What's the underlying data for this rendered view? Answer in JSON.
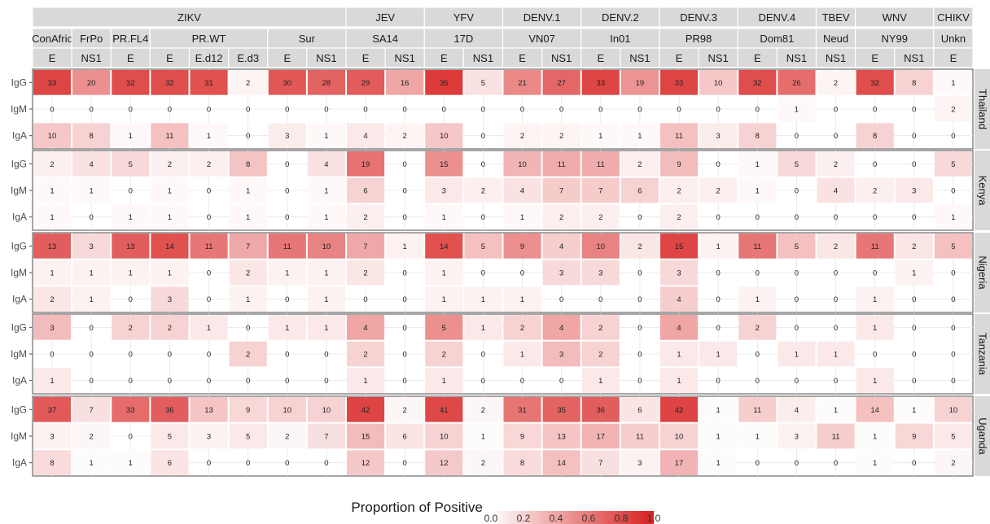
{
  "chart_data": {
    "type": "heatmap",
    "virus_headers": [
      "ZIKV",
      "JEV",
      "YFV",
      "DENV.1",
      "DENV.2",
      "DENV.3",
      "DENV.4",
      "TBEV",
      "WNV",
      "CHIKV"
    ],
    "strain_headers": [
      "ConAfric",
      "FrPo",
      "PR.FL4",
      "PR.WT",
      "Sur",
      "SA14",
      "17D",
      "VN07",
      "In01",
      "PR98",
      "Dom81",
      "Neud",
      "NY99",
      "Unkn"
    ],
    "antigen_headers": [
      "E",
      "NS1",
      "E",
      "E",
      "E.d12",
      "E.d3",
      "E",
      "NS1",
      "E",
      "NS1",
      "E",
      "NS1",
      "E",
      "NS1",
      "E",
      "NS1",
      "E",
      "NS1",
      "E",
      "NS1",
      "NS1",
      "E",
      "NS1",
      "E"
    ],
    "country_labels": [
      "Thailand",
      "Kenya",
      "Nigeria",
      "Tanzania",
      "Uganda"
    ],
    "isotype_labels": [
      "IgG",
      "IgM",
      "IgA"
    ],
    "values": [
      [
        [
          33,
          20,
          32,
          32,
          31,
          2,
          30,
          28,
          29,
          16,
          35,
          5,
          21,
          27,
          33,
          19,
          33,
          10,
          32,
          26,
          2,
          32,
          8,
          1
        ],
        [
          0,
          0,
          0,
          0,
          0,
          0,
          0,
          0,
          0,
          0,
          0,
          0,
          0,
          0,
          0,
          0,
          0,
          0,
          0,
          1,
          0,
          0,
          0,
          2
        ],
        [
          10,
          8,
          1,
          11,
          1,
          0,
          3,
          1,
          4,
          2,
          10,
          0,
          2,
          2,
          1,
          1,
          11,
          3,
          8,
          0,
          0,
          8,
          0,
          0
        ]
      ],
      [
        [
          2,
          4,
          5,
          2,
          2,
          8,
          0,
          4,
          19,
          0,
          15,
          0,
          10,
          11,
          11,
          2,
          9,
          0,
          1,
          5,
          2,
          0,
          0,
          5
        ],
        [
          1,
          1,
          0,
          1,
          0,
          1,
          0,
          1,
          6,
          0,
          3,
          2,
          4,
          7,
          7,
          6,
          2,
          2,
          1,
          0,
          4,
          2,
          3,
          0
        ],
        [
          1,
          0,
          1,
          1,
          0,
          1,
          0,
          1,
          2,
          0,
          1,
          0,
          1,
          2,
          2,
          0,
          2,
          0,
          0,
          0,
          0,
          0,
          0,
          1
        ]
      ],
      [
        [
          13,
          3,
          13,
          14,
          11,
          7,
          11,
          10,
          7,
          1,
          14,
          5,
          9,
          4,
          10,
          2,
          15,
          1,
          11,
          5,
          2,
          11,
          2,
          5
        ],
        [
          1,
          1,
          1,
          1,
          0,
          2,
          1,
          1,
          2,
          0,
          1,
          0,
          0,
          3,
          3,
          0,
          3,
          0,
          0,
          0,
          0,
          0,
          1,
          0
        ],
        [
          2,
          1,
          0,
          3,
          0,
          1,
          0,
          1,
          0,
          0,
          1,
          1,
          1,
          0,
          0,
          0,
          4,
          0,
          1,
          0,
          0,
          1,
          0,
          0
        ]
      ],
      [
        [
          3,
          0,
          2,
          2,
          1,
          0,
          1,
          1,
          4,
          0,
          5,
          1,
          2,
          4,
          2,
          0,
          4,
          0,
          2,
          0,
          0,
          1,
          0,
          0
        ],
        [
          0,
          0,
          0,
          0,
          0,
          2,
          0,
          0,
          2,
          0,
          2,
          0,
          1,
          3,
          2,
          0,
          1,
          1,
          0,
          1,
          1,
          0,
          0,
          0
        ],
        [
          1,
          0,
          0,
          0,
          0,
          0,
          0,
          0,
          1,
          0,
          1,
          0,
          0,
          0,
          1,
          0,
          1,
          0,
          0,
          0,
          0,
          1,
          0,
          0
        ]
      ],
      [
        [
          37,
          7,
          33,
          36,
          13,
          9,
          10,
          10,
          42,
          2,
          41,
          2,
          31,
          35,
          36,
          6,
          42,
          1,
          11,
          4,
          1,
          14,
          1,
          10
        ],
        [
          3,
          2,
          0,
          5,
          3,
          5,
          2,
          7,
          15,
          6,
          10,
          1,
          9,
          13,
          17,
          11,
          10,
          1,
          1,
          3,
          11,
          1,
          9,
          5
        ],
        [
          8,
          1,
          1,
          6,
          0,
          0,
          0,
          0,
          12,
          0,
          12,
          2,
          8,
          14,
          7,
          3,
          17,
          1,
          0,
          0,
          0,
          1,
          0,
          2
        ]
      ]
    ],
    "proportions": [
      [
        [
          0.83,
          0.5,
          0.8,
          0.8,
          0.78,
          0.05,
          0.75,
          0.7,
          0.73,
          0.4,
          0.88,
          0.13,
          0.53,
          0.68,
          0.83,
          0.48,
          0.83,
          0.25,
          0.8,
          0.65,
          0.05,
          0.8,
          0.2,
          0.03
        ],
        [
          0,
          0,
          0,
          0,
          0,
          0,
          0,
          0,
          0,
          0,
          0,
          0,
          0,
          0,
          0,
          0,
          0,
          0,
          0,
          0.03,
          0,
          0,
          0,
          0.05
        ],
        [
          0.25,
          0.2,
          0.03,
          0.28,
          0.03,
          0,
          0.08,
          0.03,
          0.1,
          0.05,
          0.25,
          0,
          0.05,
          0.05,
          0.03,
          0.03,
          0.28,
          0.08,
          0.2,
          0,
          0,
          0.2,
          0,
          0
        ]
      ],
      [
        [
          0.07,
          0.13,
          0.17,
          0.07,
          0.07,
          0.27,
          0,
          0.13,
          0.63,
          0,
          0.5,
          0,
          0.33,
          0.37,
          0.37,
          0.07,
          0.3,
          0,
          0.03,
          0.17,
          0.07,
          0,
          0,
          0.17
        ],
        [
          0.03,
          0.03,
          0,
          0.03,
          0,
          0.03,
          0,
          0.03,
          0.2,
          0,
          0.1,
          0.07,
          0.13,
          0.23,
          0.23,
          0.2,
          0.07,
          0.07,
          0.03,
          0,
          0.13,
          0.07,
          0.1,
          0
        ],
        [
          0.03,
          0,
          0.03,
          0.03,
          0,
          0.03,
          0,
          0.03,
          0.07,
          0,
          0.03,
          0,
          0.03,
          0.07,
          0.07,
          0,
          0.07,
          0,
          0,
          0,
          0,
          0,
          0,
          0.03
        ]
      ],
      [
        [
          0.72,
          0.17,
          0.72,
          0.78,
          0.61,
          0.39,
          0.61,
          0.56,
          0.39,
          0.06,
          0.78,
          0.28,
          0.5,
          0.22,
          0.56,
          0.11,
          0.83,
          0.06,
          0.61,
          0.28,
          0.11,
          0.61,
          0.11,
          0.28
        ],
        [
          0.06,
          0.06,
          0.06,
          0.06,
          0,
          0.11,
          0.06,
          0.06,
          0.11,
          0,
          0.06,
          0,
          0,
          0.17,
          0.17,
          0,
          0.17,
          0,
          0,
          0,
          0,
          0,
          0.06,
          0
        ],
        [
          0.11,
          0.06,
          0,
          0.17,
          0,
          0.06,
          0,
          0.06,
          0,
          0,
          0.06,
          0.06,
          0.06,
          0,
          0,
          0,
          0.22,
          0,
          0.06,
          0,
          0,
          0.06,
          0,
          0
        ]
      ],
      [
        [
          0.3,
          0,
          0.2,
          0.2,
          0.1,
          0,
          0.1,
          0.1,
          0.4,
          0,
          0.5,
          0.1,
          0.2,
          0.4,
          0.2,
          0,
          0.4,
          0,
          0.2,
          0,
          0,
          0.1,
          0,
          0
        ],
        [
          0,
          0,
          0,
          0,
          0,
          0.2,
          0,
          0,
          0.2,
          0,
          0.2,
          0,
          0.1,
          0.3,
          0.2,
          0,
          0.1,
          0.1,
          0,
          0.1,
          0.1,
          0,
          0,
          0
        ],
        [
          0.1,
          0,
          0,
          0,
          0,
          0,
          0,
          0,
          0.1,
          0,
          0.1,
          0,
          0,
          0,
          0.1,
          0,
          0.1,
          0,
          0,
          0,
          0,
          0.1,
          0,
          0
        ]
      ],
      [
        [
          0.74,
          0.14,
          0.66,
          0.72,
          0.26,
          0.18,
          0.2,
          0.2,
          0.84,
          0.04,
          0.82,
          0.04,
          0.62,
          0.7,
          0.72,
          0.12,
          0.84,
          0.02,
          0.22,
          0.08,
          0.02,
          0.28,
          0.02,
          0.2
        ],
        [
          0.06,
          0.04,
          0,
          0.1,
          0.06,
          0.1,
          0.04,
          0.14,
          0.3,
          0.12,
          0.2,
          0.02,
          0.18,
          0.26,
          0.34,
          0.22,
          0.2,
          0.02,
          0.02,
          0.06,
          0.22,
          0.02,
          0.18,
          0.1
        ],
        [
          0.16,
          0.02,
          0.02,
          0.12,
          0,
          0,
          0,
          0,
          0.24,
          0,
          0.24,
          0.04,
          0.16,
          0.28,
          0.14,
          0.06,
          0.34,
          0.02,
          0,
          0,
          0,
          0.02,
          0,
          0.04
        ]
      ]
    ],
    "legend_title": "Proportion of Positive",
    "legend_ticks": [
      "0.0",
      "0.2",
      "0.4",
      "0.6",
      "0.8",
      "1.0"
    ],
    "legend_range": [
      0,
      1
    ],
    "legend_placement": "bottom-center",
    "color_low": "#ffffff",
    "color_high": "#d7201f",
    "strip_color": "#d9d9d9",
    "grid": true
  }
}
